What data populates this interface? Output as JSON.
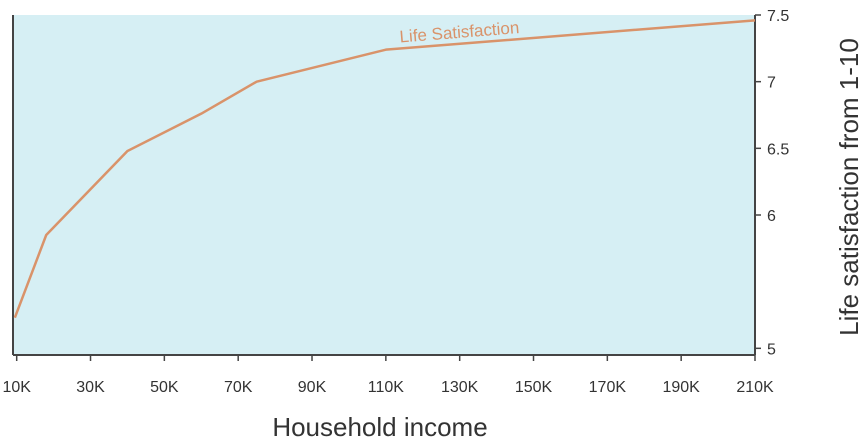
{
  "chart_data": {
    "type": "line",
    "title": "",
    "xlabel": "Household income",
    "ylabel": "Life satisfaction from 1-10",
    "xlim": [
      9,
      210
    ],
    "ylim": [
      4.95,
      7.5
    ],
    "x_ticks": [
      10,
      30,
      50,
      70,
      90,
      110,
      130,
      150,
      170,
      190,
      210
    ],
    "x_tick_labels": [
      "10K",
      "30K",
      "50K",
      "70K",
      "90K",
      "110K",
      "130K",
      "150K",
      "170K",
      "190K",
      "210K"
    ],
    "y_ticks": [
      5,
      6,
      6.5,
      7,
      7.5
    ],
    "y_tick_labels": [
      "5",
      "6",
      "6.5",
      "7",
      "7.5"
    ],
    "y_axis_side": "right",
    "grid": false,
    "background_color": "#d6eff4",
    "series": [
      {
        "name": "Life Satisfaction",
        "color": "#d9936a",
        "x": [
          9.5,
          18,
          40,
          60,
          75,
          110,
          210
        ],
        "y": [
          5.23,
          5.85,
          6.48,
          6.76,
          7.0,
          7.24,
          7.46
        ]
      }
    ]
  }
}
